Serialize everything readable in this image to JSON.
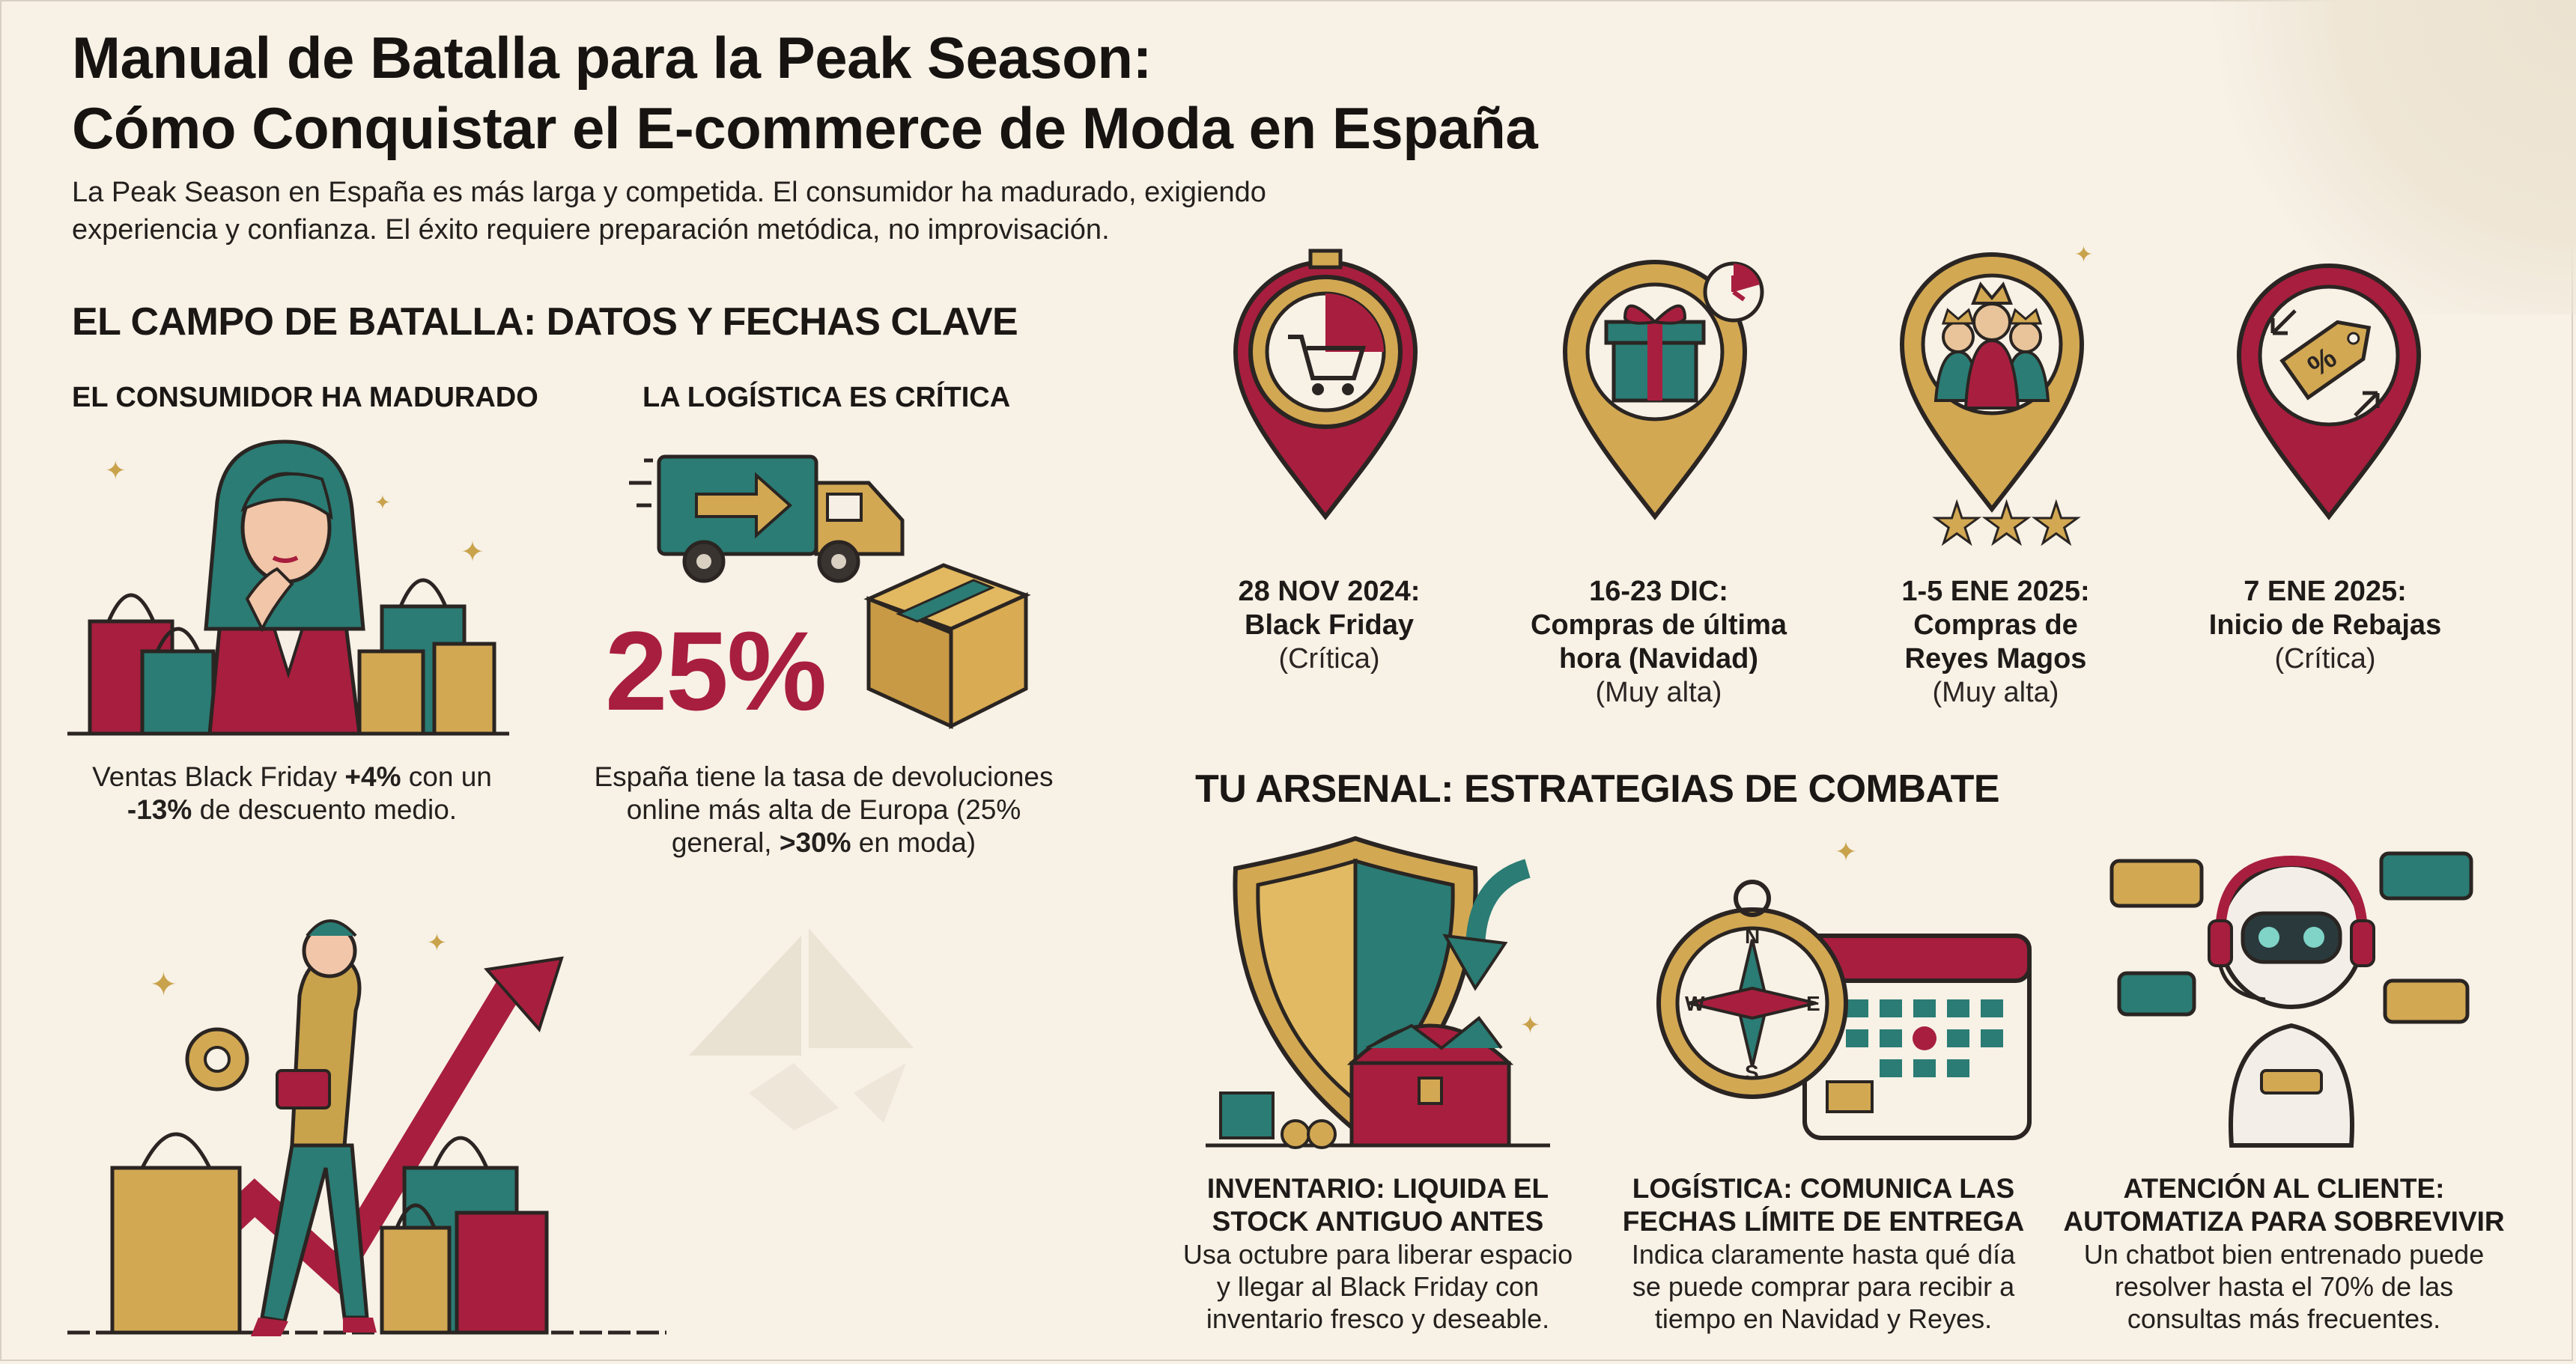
{
  "title": {
    "line1": "Manual de Batalla para la Peak Season:",
    "line2": "Cómo Conquistar el E-commerce de Moda en España"
  },
  "intro": {
    "line1": "La Peak Season en España es más larga y competida. El consumidor ha madurado, exigiendo",
    "line2": "experiencia y confianza. El éxito requiere preparación metódica, no improvisación."
  },
  "battlefield": {
    "heading": "EL CAMPO DE BATALLA: DATOS Y FECHAS CLAVE",
    "consumer": {
      "heading": "EL CONSUMIDOR HA MADURADO",
      "text_a": "Ventas Black Friday ",
      "text_b": "+4%",
      "text_c": " con un",
      "text_d": "-13%",
      "text_e": " de descuento medio."
    },
    "logistics": {
      "heading": "LA LOGÍSTICA ES CRÍTICA",
      "big_value": "25%",
      "text_a": "España tiene la tasa de devoluciones",
      "text_b": "online más alta de Europa (25%",
      "text_c": "general, ",
      "text_d": ">30%",
      "text_e": " en moda)"
    }
  },
  "dates": [
    {
      "title_1": "28 NOV 2024:",
      "title_2": "Black Friday",
      "title_3": "",
      "note": "(Crítica)",
      "icon": "stopwatch-cart-icon"
    },
    {
      "title_1": "16-23 DIC:",
      "title_2": "Compras de última",
      "title_3": "hora (Navidad)",
      "note": "(Muy alta)",
      "icon": "gift-clock-icon"
    },
    {
      "title_1": "1-5 ENE 2025:",
      "title_2": "Compras de",
      "title_3": "Reyes Magos",
      "note": "(Muy alta)",
      "icon": "three-kings-icon"
    },
    {
      "title_1": "7 ENE 2025:",
      "title_2": "Inicio de Rebajas",
      "title_3": "",
      "note": "(Crítica)",
      "icon": "discount-tag-icon"
    }
  ],
  "arsenal": {
    "heading": "TU ARSENAL: ESTRATEGIAS DE COMBATE",
    "items": [
      {
        "title_1": "INVENTARIO: LIQUIDA EL",
        "title_2": "STOCK ANTIGUO ANTES",
        "text_1": "Usa octubre para liberar espacio",
        "text_2": "y llegar al Black Friday con",
        "text_3": "inventario fresco y deseable.",
        "icon": "shield-treasure-icon"
      },
      {
        "title_1": "LOGÍSTICA: COMUNICA LAS",
        "title_2": "FECHAS LÍMITE DE ENTREGA",
        "text_1": "Indica claramente hasta qué día",
        "text_2": "se puede comprar para recibir a",
        "text_3": "tiempo en Navidad y Reyes.",
        "icon": "compass-calendar-icon"
      },
      {
        "title_1": "ATENCIÓN AL CLIENTE:",
        "title_2": "AUTOMATIZA PARA SOBREVIVIR",
        "text_1": "Un chatbot bien entrenado puede",
        "text_2": "resolver hasta el 70% de las",
        "text_3": "consultas más frecuentes.",
        "icon": "chatbot-robot-icon"
      }
    ]
  },
  "colors": {
    "crimson": "#a81e3e",
    "gold": "#c9a24c",
    "teal": "#2a7c74",
    "cream": "#f7f1e6",
    "ink": "#1e1a18"
  }
}
